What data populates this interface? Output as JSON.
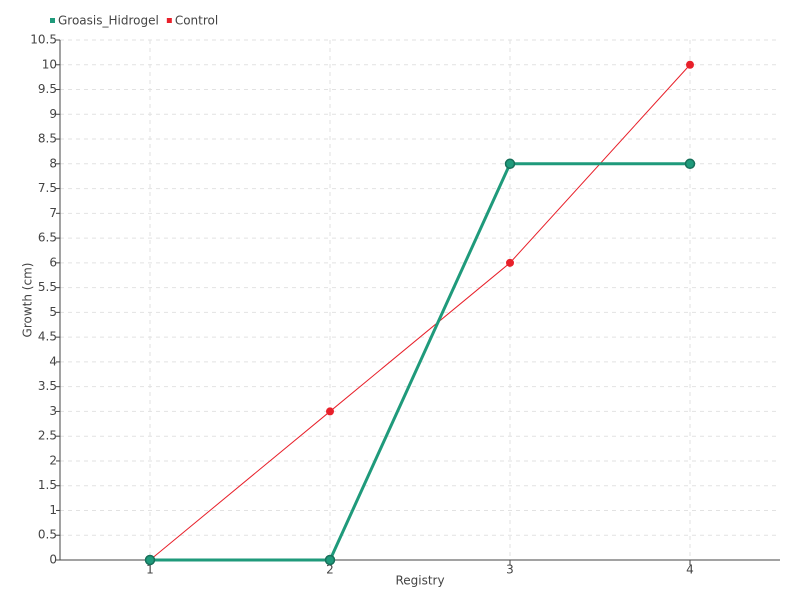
{
  "chart_data": {
    "type": "line",
    "x_label": "Registry",
    "y_label": "Growth (cm)",
    "x": [
      1,
      2,
      3,
      4
    ],
    "series": [
      {
        "name": "Groasis_Hidrogel",
        "color": "#1f9a7b",
        "values": [
          0,
          0,
          8,
          8
        ]
      },
      {
        "name": "Control",
        "color": "#e8202a",
        "values": [
          0,
          3,
          6,
          10
        ]
      }
    ],
    "xlim": [
      0.5,
      4.5
    ],
    "xticks": [
      1,
      2,
      3,
      4
    ],
    "ylim": [
      0,
      10.5
    ],
    "yticks": [
      0,
      0.5,
      1,
      1.5,
      2,
      2.5,
      3,
      3.5,
      4,
      4.5,
      5,
      5.5,
      6,
      6.5,
      7,
      7.5,
      8,
      8.5,
      9,
      9.5,
      10,
      10.5
    ],
    "grid": true,
    "legend": "top-left"
  }
}
